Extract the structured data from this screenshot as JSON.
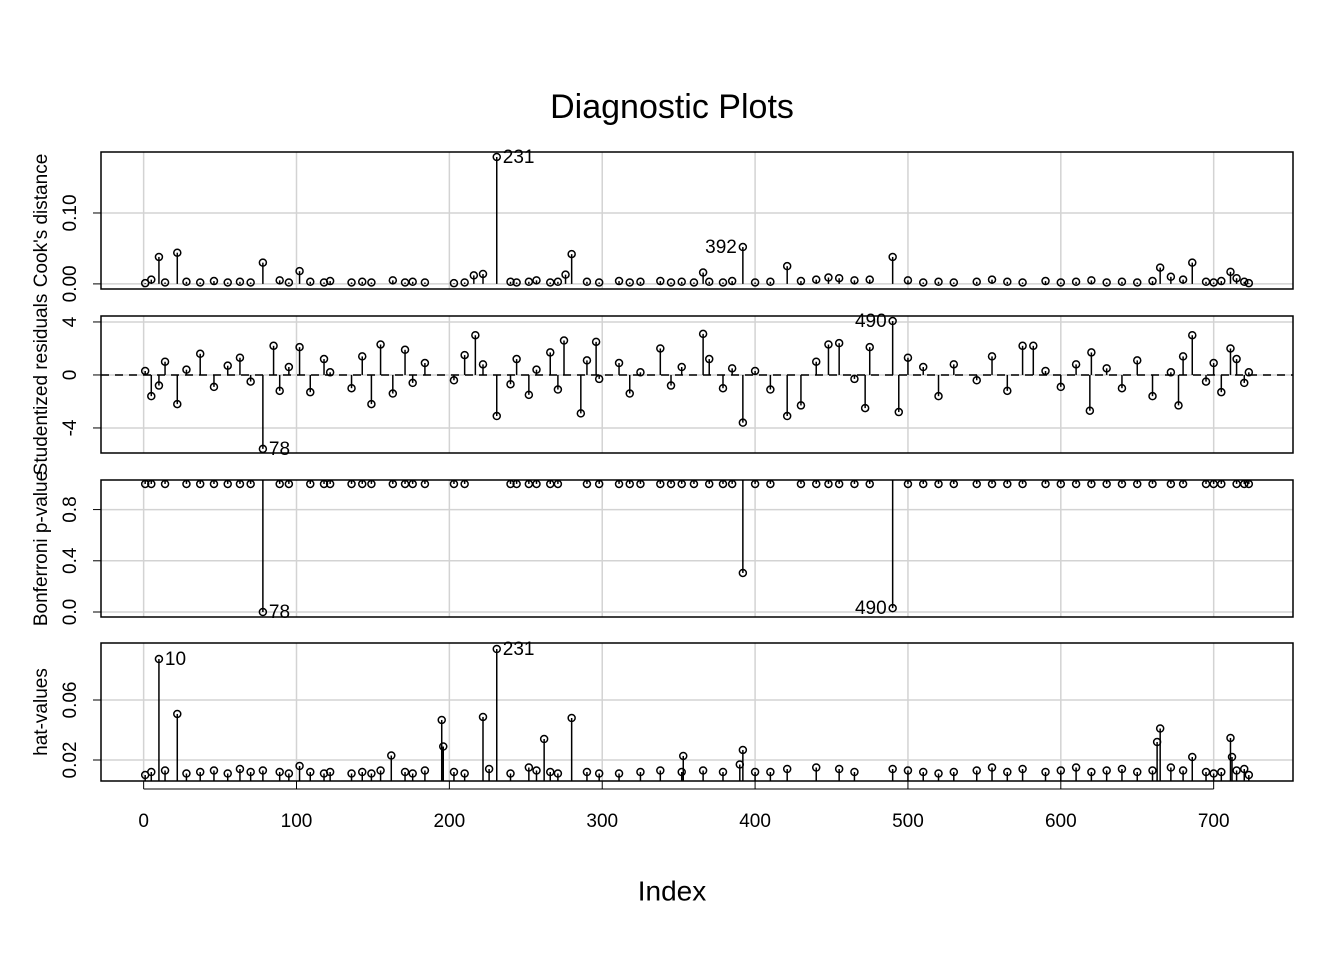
{
  "title": "Diagnostic Plots",
  "x_label": "Index",
  "chart_data": [
    {
      "type": "stem",
      "y_label": "Cook's distance",
      "xlim": [
        -27.9,
        751.9
      ],
      "xticks": [
        0,
        100,
        200,
        300,
        400,
        500,
        600,
        700
      ],
      "ylim": [
        -0.0072,
        0.186
      ],
      "yticks": [
        {
          "value": 0,
          "label": "0.00"
        },
        {
          "value": 0.1,
          "label": "0.10"
        }
      ],
      "grid": true,
      "x": [
        1,
        5,
        10,
        14,
        22,
        28,
        37,
        46,
        55,
        63,
        70,
        78,
        89,
        95,
        102,
        109,
        118,
        122,
        136,
        143,
        149,
        163,
        171,
        176,
        184,
        203,
        210,
        216,
        222,
        240,
        244,
        252,
        257,
        266,
        271,
        276,
        280,
        290,
        298,
        311,
        318,
        325,
        338,
        345,
        352,
        360,
        366,
        370,
        379,
        385,
        400,
        410,
        421,
        430,
        440,
        448,
        455,
        465,
        475,
        490,
        500,
        510,
        520,
        530,
        545,
        555,
        565,
        575,
        590,
        600,
        610,
        620,
        630,
        640,
        650,
        660,
        665,
        672,
        680,
        686,
        695,
        700,
        705,
        711,
        715,
        720,
        723
      ],
      "values": [
        0.001,
        0.006,
        0.038,
        0.002,
        0.044,
        0.003,
        0.002,
        0.004,
        0.002,
        0.003,
        0.002,
        0.03,
        0.005,
        0.002,
        0.018,
        0.003,
        0.002,
        0.004,
        0.002,
        0.003,
        0.002,
        0.005,
        0.002,
        0.003,
        0.002,
        0.001,
        0.002,
        0.012,
        0.014,
        0.003,
        0.002,
        0.003,
        0.005,
        0.002,
        0.003,
        0.013,
        0.042,
        0.003,
        0.002,
        0.004,
        0.002,
        0.003,
        0.004,
        0.002,
        0.003,
        0.002,
        0.016,
        0.003,
        0.002,
        0.004,
        0.002,
        0.003,
        0.025,
        0.004,
        0.006,
        0.009,
        0.008,
        0.005,
        0.006,
        0.038,
        0.005,
        0.002,
        0.003,
        0.002,
        0.003,
        0.006,
        0.003,
        0.002,
        0.004,
        0.002,
        0.003,
        0.005,
        0.002,
        0.003,
        0.002,
        0.004,
        0.023,
        0.01,
        0.006,
        0.03,
        0.003,
        0.002,
        0.004,
        0.017,
        0.008,
        0.003,
        0.001
      ],
      "outliers": {
        "x": [
          231,
          392
        ],
        "values": [
          0.179,
          0.052
        ]
      }
    },
    {
      "type": "stem",
      "y_label": "Studentized residuals",
      "xlim": [
        -27.9,
        751.9
      ],
      "xticks": [
        0,
        100,
        200,
        300,
        400,
        500,
        600,
        700
      ],
      "ylim": [
        -5.89,
        4.45
      ],
      "yticks": [
        -4,
        0,
        4
      ],
      "grid": true,
      "zero_line": true,
      "x": [
        1,
        5,
        10,
        14,
        22,
        28,
        37,
        46,
        55,
        63,
        70,
        85,
        89,
        95,
        102,
        109,
        118,
        122,
        136,
        143,
        149,
        155,
        163,
        171,
        176,
        184,
        203,
        210,
        217,
        222,
        231,
        240,
        244,
        252,
        257,
        266,
        271,
        275,
        286,
        290,
        296,
        298,
        311,
        318,
        325,
        338,
        345,
        352,
        366,
        370,
        379,
        385,
        392,
        400,
        410,
        421,
        430,
        440,
        448,
        455,
        465,
        472,
        475,
        494,
        500,
        510,
        520,
        530,
        545,
        555,
        565,
        575,
        582,
        590,
        600,
        610,
        619,
        620,
        630,
        640,
        650,
        660,
        672,
        677,
        680,
        686,
        695,
        700,
        705,
        711,
        715,
        720,
        723
      ],
      "values": [
        0.3,
        -1.6,
        -0.8,
        1.0,
        -2.2,
        0.4,
        1.6,
        -0.9,
        0.7,
        1.3,
        -0.5,
        2.2,
        -1.2,
        0.6,
        2.1,
        -1.3,
        1.2,
        0.2,
        -1.0,
        1.4,
        -2.2,
        2.3,
        -1.4,
        1.9,
        -0.6,
        0.9,
        -0.4,
        1.5,
        3.0,
        0.8,
        -3.1,
        -0.7,
        1.2,
        -1.5,
        0.4,
        1.7,
        -1.1,
        2.6,
        -2.9,
        1.1,
        2.5,
        -0.3,
        0.9,
        -1.4,
        0.2,
        2.0,
        -0.8,
        0.6,
        3.1,
        1.2,
        -1.0,
        0.5,
        -3.6,
        0.3,
        -1.1,
        -3.1,
        -2.3,
        1.0,
        2.3,
        2.4,
        -0.3,
        -2.5,
        2.1,
        -2.8,
        1.3,
        0.6,
        -1.6,
        0.8,
        -0.4,
        1.4,
        -1.2,
        2.2,
        2.2,
        0.3,
        -0.9,
        0.8,
        -2.7,
        1.7,
        0.5,
        -1.0,
        1.1,
        -1.6,
        0.2,
        -2.3,
        1.4,
        3.0,
        -0.5,
        0.9,
        -1.3,
        2.0,
        1.2,
        -0.6,
        0.2
      ],
      "outliers": {
        "x": [
          78,
          490
        ],
        "values": [
          -5.58,
          4.07
        ]
      }
    },
    {
      "type": "drop",
      "y_label": "Bonferroni p-value",
      "xlim": [
        -27.9,
        751.9
      ],
      "xticks": [
        0,
        100,
        200,
        300,
        400,
        500,
        600,
        700
      ],
      "ylim": [
        -0.039,
        1.031
      ],
      "yticks": [
        {
          "value": 0,
          "label": "0.0"
        },
        {
          "value": 0.4,
          "label": "0.4"
        },
        {
          "value": 0.8,
          "label": "0.8"
        }
      ],
      "grid": true,
      "x": [
        1,
        5,
        14,
        28,
        37,
        46,
        55,
        63,
        70,
        89,
        95,
        109,
        118,
        122,
        136,
        143,
        149,
        163,
        171,
        176,
        184,
        203,
        210,
        240,
        244,
        252,
        257,
        266,
        271,
        290,
        298,
        311,
        318,
        325,
        338,
        345,
        352,
        360,
        370,
        379,
        385,
        392,
        400,
        410,
        430,
        440,
        448,
        455,
        465,
        475,
        500,
        510,
        520,
        530,
        545,
        555,
        565,
        575,
        590,
        600,
        610,
        620,
        630,
        640,
        650,
        660,
        672,
        680,
        695,
        700,
        705,
        715,
        720,
        723
      ],
      "values": [
        1,
        1,
        1,
        1,
        1,
        1,
        1,
        1,
        1,
        1,
        1,
        1,
        1,
        1,
        1,
        1,
        1,
        1,
        1,
        1,
        1,
        1,
        1,
        1,
        1,
        1,
        1,
        1,
        1,
        1,
        1,
        1,
        1,
        1,
        1,
        1,
        1,
        1,
        1,
        1,
        1,
        0.305,
        1,
        1,
        1,
        1,
        1,
        1,
        1,
        1,
        1,
        1,
        1,
        1,
        1,
        1,
        1,
        1,
        1,
        1,
        1,
        1,
        1,
        1,
        1,
        1,
        1,
        1,
        1,
        1,
        1,
        1,
        1,
        1
      ],
      "outliers": {
        "x": [
          78,
          490
        ],
        "values": [
          0,
          0.03
        ]
      }
    },
    {
      "type": "stem",
      "y_label": "hat-values",
      "xlim": [
        -27.9,
        751.9
      ],
      "xticks": [
        0,
        100,
        200,
        300,
        400,
        500,
        600,
        700
      ],
      "ylim": [
        0.006,
        0.098
      ],
      "yticks": [
        0.02,
        0.06
      ],
      "grid": true,
      "x": [
        1,
        5,
        14,
        22,
        28,
        37,
        46,
        55,
        63,
        70,
        78,
        89,
        95,
        102,
        109,
        118,
        122,
        136,
        143,
        149,
        155,
        162,
        171,
        176,
        184,
        195,
        196,
        203,
        210,
        222,
        226,
        240,
        252,
        257,
        262,
        266,
        271,
        280,
        290,
        298,
        311,
        325,
        338,
        352,
        353,
        366,
        379,
        390,
        392,
        400,
        410,
        421,
        440,
        455,
        465,
        490,
        500,
        510,
        520,
        530,
        545,
        555,
        565,
        575,
        590,
        600,
        610,
        620,
        630,
        640,
        650,
        660,
        663,
        665,
        672,
        680,
        686,
        695,
        700,
        705,
        711,
        712,
        715,
        720,
        723
      ],
      "values": [
        0.01,
        0.012,
        0.013,
        0.0507,
        0.011,
        0.012,
        0.013,
        0.011,
        0.014,
        0.012,
        0.013,
        0.012,
        0.011,
        0.016,
        0.012,
        0.011,
        0.012,
        0.011,
        0.012,
        0.011,
        0.013,
        0.023,
        0.012,
        0.011,
        0.013,
        0.0467,
        0.029,
        0.012,
        0.011,
        0.0487,
        0.014,
        0.011,
        0.015,
        0.013,
        0.034,
        0.012,
        0.011,
        0.048,
        0.012,
        0.011,
        0.011,
        0.012,
        0.013,
        0.012,
        0.0227,
        0.013,
        0.012,
        0.017,
        0.0267,
        0.012,
        0.012,
        0.014,
        0.015,
        0.014,
        0.012,
        0.014,
        0.013,
        0.012,
        0.011,
        0.012,
        0.013,
        0.015,
        0.012,
        0.014,
        0.012,
        0.013,
        0.015,
        0.012,
        0.013,
        0.014,
        0.012,
        0.013,
        0.032,
        0.041,
        0.015,
        0.013,
        0.022,
        0.012,
        0.011,
        0.012,
        0.0347,
        0.022,
        0.013,
        0.014,
        0.01
      ],
      "outliers": {
        "x": [
          10,
          231
        ],
        "values": [
          0.0873,
          0.094
        ]
      }
    }
  ]
}
